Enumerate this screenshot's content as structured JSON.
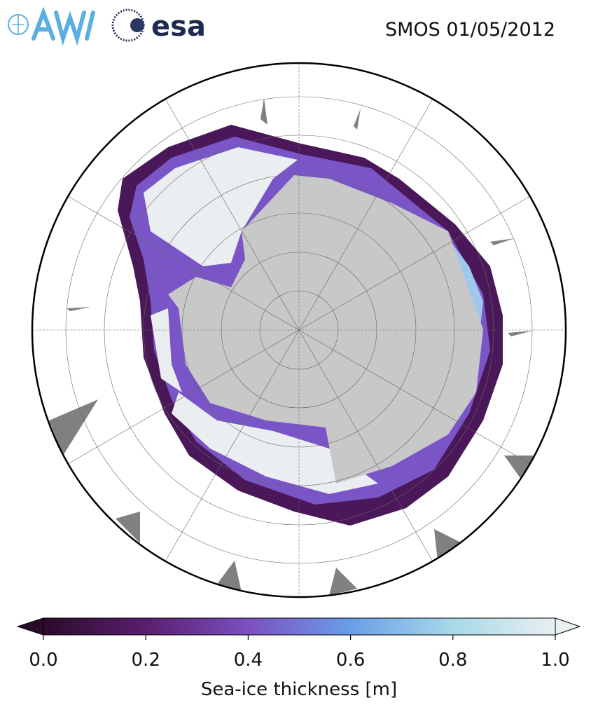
{
  "title": "SMOS 01/05/2012",
  "logos": [
    "esa"
  ],
  "colorbar": {
    "label": "Sea-ice thickness [m]",
    "lim": [
      0,
      1
    ],
    "ticks": [
      {
        "value": 0,
        "label": "0.0"
      },
      0.2,
      0.4,
      0.6,
      0.8,
      {
        "value": 1,
        "label": "1.0"
      }
    ],
    "colors": [
      "#2a0c2a",
      "#5a1e6e",
      "#7a50c0",
      "#6a9ee8",
      "#a8d8e8",
      "#e8f0f0"
    ],
    "extend": "both"
  }
}
